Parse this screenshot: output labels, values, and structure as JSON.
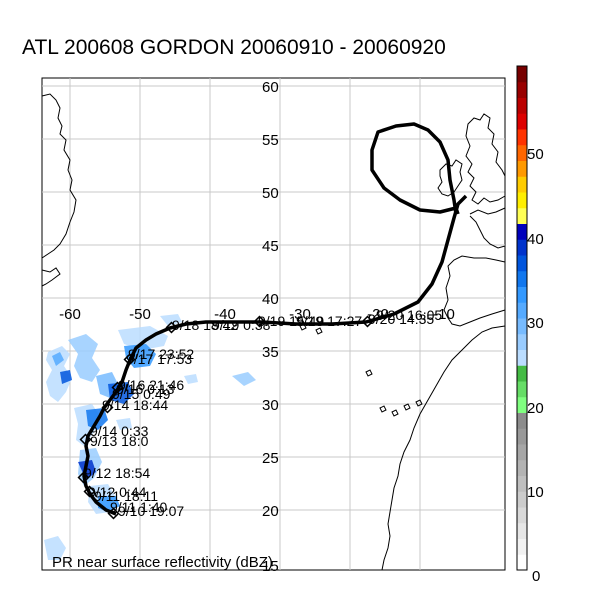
{
  "title": "ATL 200608 GORDON 20060910 - 20060920",
  "caption": "PR near surface reflectivity (dBZ)",
  "lon_labels": [
    "-60",
    "-50",
    "-40",
    "-30",
    "-20",
    "-10"
  ],
  "lat_labels": [
    "15",
    "20",
    "25",
    "30",
    "35",
    "40",
    "45",
    "50",
    "55",
    "60"
  ],
  "colorbar": {
    "labels": [
      "0",
      "10",
      "20",
      "30",
      "40",
      "50"
    ],
    "colors": [
      "#ffffff",
      "#f2f2f2",
      "#e6e6e6",
      "#d9d9d9",
      "#cccccc",
      "#bfbfbf",
      "#b3b3b3",
      "#a6a6a6",
      "#999999",
      "#8c8c8c",
      "#80ff80",
      "#66dd66",
      "#44bb44",
      "#bbddff",
      "#99ccff",
      "#77bbff",
      "#55aaff",
      "#3399ff",
      "#1177ee",
      "#0055dd",
      "#0033cc",
      "#0000bb",
      "#ffff55",
      "#ffee00",
      "#ffcc00",
      "#ff9900",
      "#ff6600",
      "#ff3300",
      "#dd0000",
      "#bb0000",
      "#990000",
      "#770000"
    ]
  },
  "colors": {
    "track": "#000000",
    "coast": "#000000",
    "grid": "#c8c8c8"
  },
  "track_points": [
    {
      "label": "9/10 19:07"
    },
    {
      "label": "9/11 1:40"
    },
    {
      "label": "9/11 18:11"
    },
    {
      "label": "9/12 0:44"
    },
    {
      "label": "9/12 18:54"
    },
    {
      "label": "9/13 18:0"
    },
    {
      "label": "9/14 0:33"
    },
    {
      "label": "9/14 18:44"
    },
    {
      "label": "9/15 0:49"
    },
    {
      "label": "9/16 0:13"
    },
    {
      "label": "9/16 21:46"
    },
    {
      "label": "9/17 17:53"
    },
    {
      "label": "9/17 23:52"
    },
    {
      "label": "9/18 18:42"
    },
    {
      "label": "9/19 0:38"
    },
    {
      "label": "9/19 15:49"
    },
    {
      "label": "9/19 17:27"
    },
    {
      "label": "9/20 14:35"
    },
    {
      "label": "9/20 16:05"
    }
  ]
}
